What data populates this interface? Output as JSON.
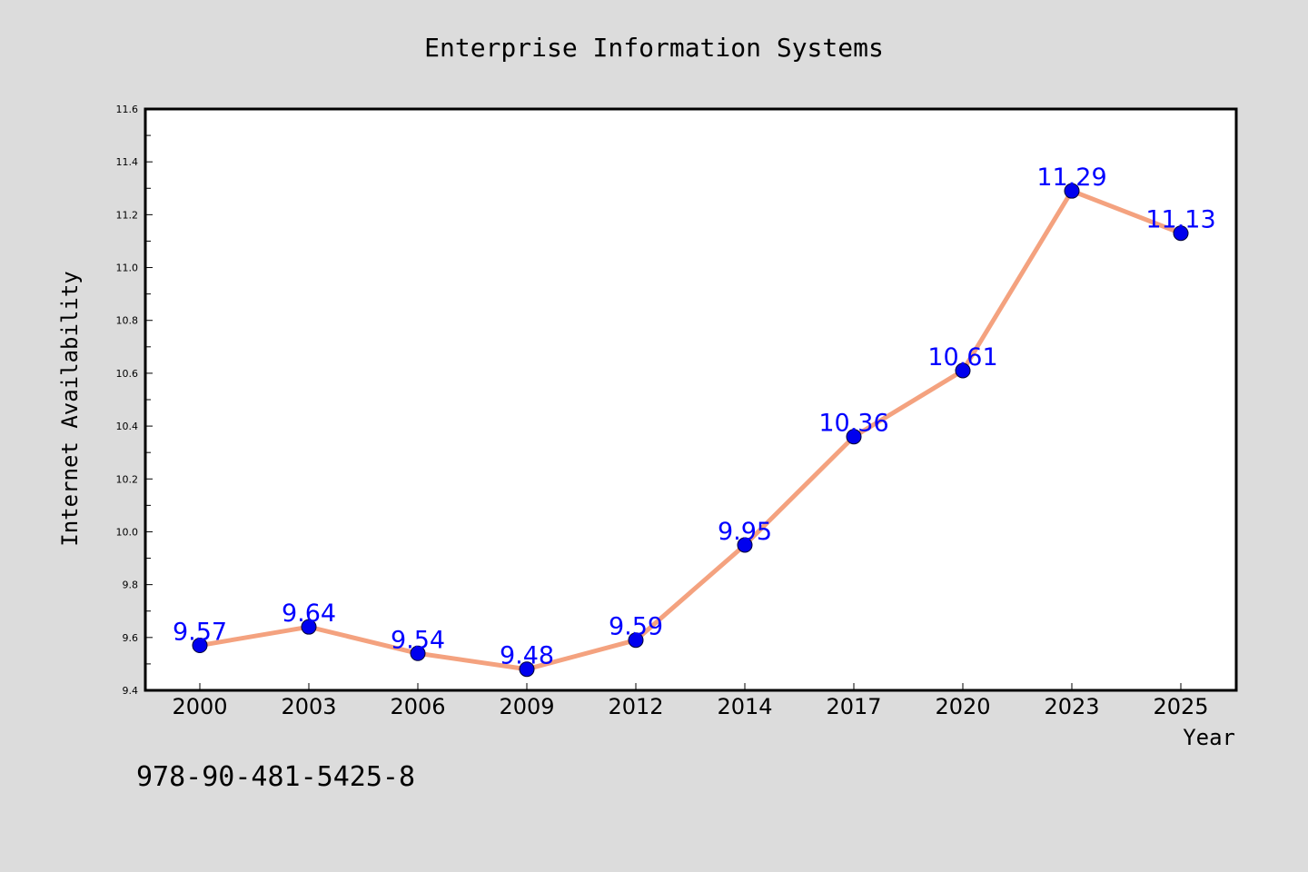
{
  "chart_data": {
    "type": "line",
    "title": "Enterprise Information Systems",
    "xlabel": "Year",
    "ylabel": "Internet Availability",
    "categories": [
      "2000",
      "2003",
      "2006",
      "2009",
      "2012",
      "2014",
      "2017",
      "2020",
      "2023",
      "2025"
    ],
    "series": [
      {
        "values": [
          9.57,
          9.64,
          9.54,
          9.48,
          9.59,
          9.95,
          10.36,
          10.61,
          11.29,
          11.13
        ]
      }
    ],
    "data_labels": [
      "9.57",
      "9.64",
      "9.54",
      "9.48",
      "9.59",
      "9.95",
      "10.36",
      "10.61",
      "11.29",
      "11.13"
    ],
    "ylim": [
      9.4,
      11.6
    ],
    "yticks": [
      "9.4",
      "9.6",
      "9.8",
      "10.0",
      "10.2",
      "10.4",
      "10.6",
      "10.8",
      "11.0",
      "11.2",
      "11.4",
      "11.6"
    ],
    "grid": false,
    "legend": "none",
    "colors": {
      "background": "#dcdcdc",
      "plot_background": "#ffffff",
      "line": "#f4a27f",
      "marker": "#0000ee",
      "data_label": "#0000ff",
      "axis": "#000000"
    }
  },
  "footer_code": "978-90-481-5425-8"
}
